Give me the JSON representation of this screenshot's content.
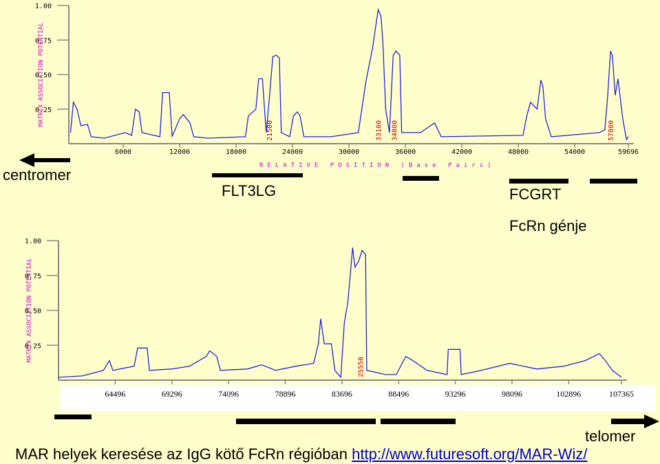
{
  "chart_data": [
    {
      "type": "line",
      "ylabel": "MATRIX ASSOCIATION POTENTIAL",
      "xlabel": "RELATIVE POSITION (Base Pairs)",
      "color": "#2222dd",
      "xlim": [
        0,
        59696
      ],
      "xticks": [
        6000,
        12000,
        18000,
        24000,
        30000,
        36000,
        42000,
        48000,
        54000,
        59696
      ],
      "ylim": [
        0,
        1
      ],
      "yticks": [
        {
          "value": 1,
          "label": "1.00"
        },
        0.75,
        {
          "value": 0.5,
          "label": "0.50"
        },
        0.25
      ],
      "markers": [
        21500,
        33100,
        34800,
        57800
      ],
      "x": [
        400,
        700,
        1100,
        1500,
        2200,
        2600,
        4000,
        6200,
        6900,
        7300,
        7700,
        8000,
        9900,
        10200,
        10900,
        11200,
        12000,
        12400,
        13100,
        13500,
        15000,
        19000,
        19300,
        20100,
        20400,
        20800,
        21200,
        21500,
        21900,
        22300,
        22600,
        22800,
        23700,
        24100,
        24500,
        24800,
        25200,
        28100,
        31000,
        31800,
        32500,
        33100,
        33400,
        33600,
        33900,
        34300,
        34700,
        35000,
        35400,
        35600,
        37600,
        39100,
        39800,
        48500,
        48900,
        49300,
        50000,
        50400,
        50600,
        50900,
        51500,
        56600,
        57200,
        57500,
        57800,
        58000,
        58300,
        58600,
        59100,
        59500,
        59696
      ],
      "values": [
        0.08,
        0.3,
        0.25,
        0.13,
        0.14,
        0.05,
        0.04,
        0.08,
        0.06,
        0.25,
        0.23,
        0.08,
        0.05,
        0.37,
        0.37,
        0.05,
        0.18,
        0.21,
        0.15,
        0.05,
        0.04,
        0.05,
        0.2,
        0.25,
        0.47,
        0.47,
        0.08,
        0.3,
        0.63,
        0.64,
        0.62,
        0.08,
        0.05,
        0.2,
        0.23,
        0.2,
        0.05,
        0.05,
        0.08,
        0.45,
        0.69,
        0.97,
        0.92,
        0.74,
        0.25,
        0.08,
        0.64,
        0.67,
        0.64,
        0.08,
        0.08,
        0.15,
        0.05,
        0.06,
        0.2,
        0.3,
        0.25,
        0.46,
        0.42,
        0.18,
        0.05,
        0.08,
        0.1,
        0.35,
        0.67,
        0.64,
        0.35,
        0.47,
        0.18,
        0.03,
        0.05
      ]
    },
    {
      "type": "line",
      "ylabel": "MATRIX ASSOCIATION POTENTIAL",
      "color": "#2222dd",
      "xlim": [
        59696,
        107365
      ],
      "xticks": [
        64496,
        69296,
        74096,
        78896,
        83696,
        88496,
        93296,
        98096,
        102896,
        107365
      ],
      "ylim": [
        0,
        1
      ],
      "yticks": [
        {
          "value": 1,
          "label": "1.00"
        },
        0.75,
        {
          "value": 0.5,
          "label": "0.50"
        },
        0.25
      ],
      "markers": [
        25550
      ],
      "x": [
        59696,
        61700,
        63500,
        64000,
        64300,
        66100,
        66400,
        67200,
        67400,
        69300,
        70800,
        72200,
        72500,
        73100,
        73400,
        75700,
        76900,
        78100,
        79800,
        81300,
        81700,
        81900,
        82200,
        82800,
        83100,
        83600,
        83900,
        84200,
        84500,
        84600,
        84800,
        85100,
        85400,
        85700,
        85800,
        87400,
        88300,
        89100,
        89700,
        90900,
        92600,
        92700,
        93700,
        93800,
        95500,
        97900,
        100200,
        102500,
        104300,
        105500,
        106000,
        106600,
        107365
      ],
      "values": [
        0.02,
        0.03,
        0.07,
        0.14,
        0.07,
        0.1,
        0.23,
        0.23,
        0.07,
        0.08,
        0.1,
        0.17,
        0.21,
        0.17,
        0.07,
        0.08,
        0.11,
        0.07,
        0.1,
        0.12,
        0.26,
        0.44,
        0.26,
        0.26,
        0.07,
        0.02,
        0.41,
        0.56,
        0.85,
        0.95,
        0.81,
        0.85,
        0.93,
        0.9,
        0.07,
        0.04,
        0.04,
        0.17,
        0.14,
        0.07,
        0.04,
        0.22,
        0.22,
        0.04,
        0.07,
        0.12,
        0.08,
        0.1,
        0.14,
        0.19,
        0.14,
        0.07,
        0.02
      ]
    }
  ],
  "page": {
    "centromere": "centromer",
    "gene_1": "FLT3LG",
    "gene_2": "FCGRT",
    "gene_3": "FcRn génje",
    "telomere": "telomer",
    "caption": "MAR helyek keresése az IgG kötő FcRn régióban",
    "link": "http://www.futuresoft.org/MAR-Wiz/"
  }
}
